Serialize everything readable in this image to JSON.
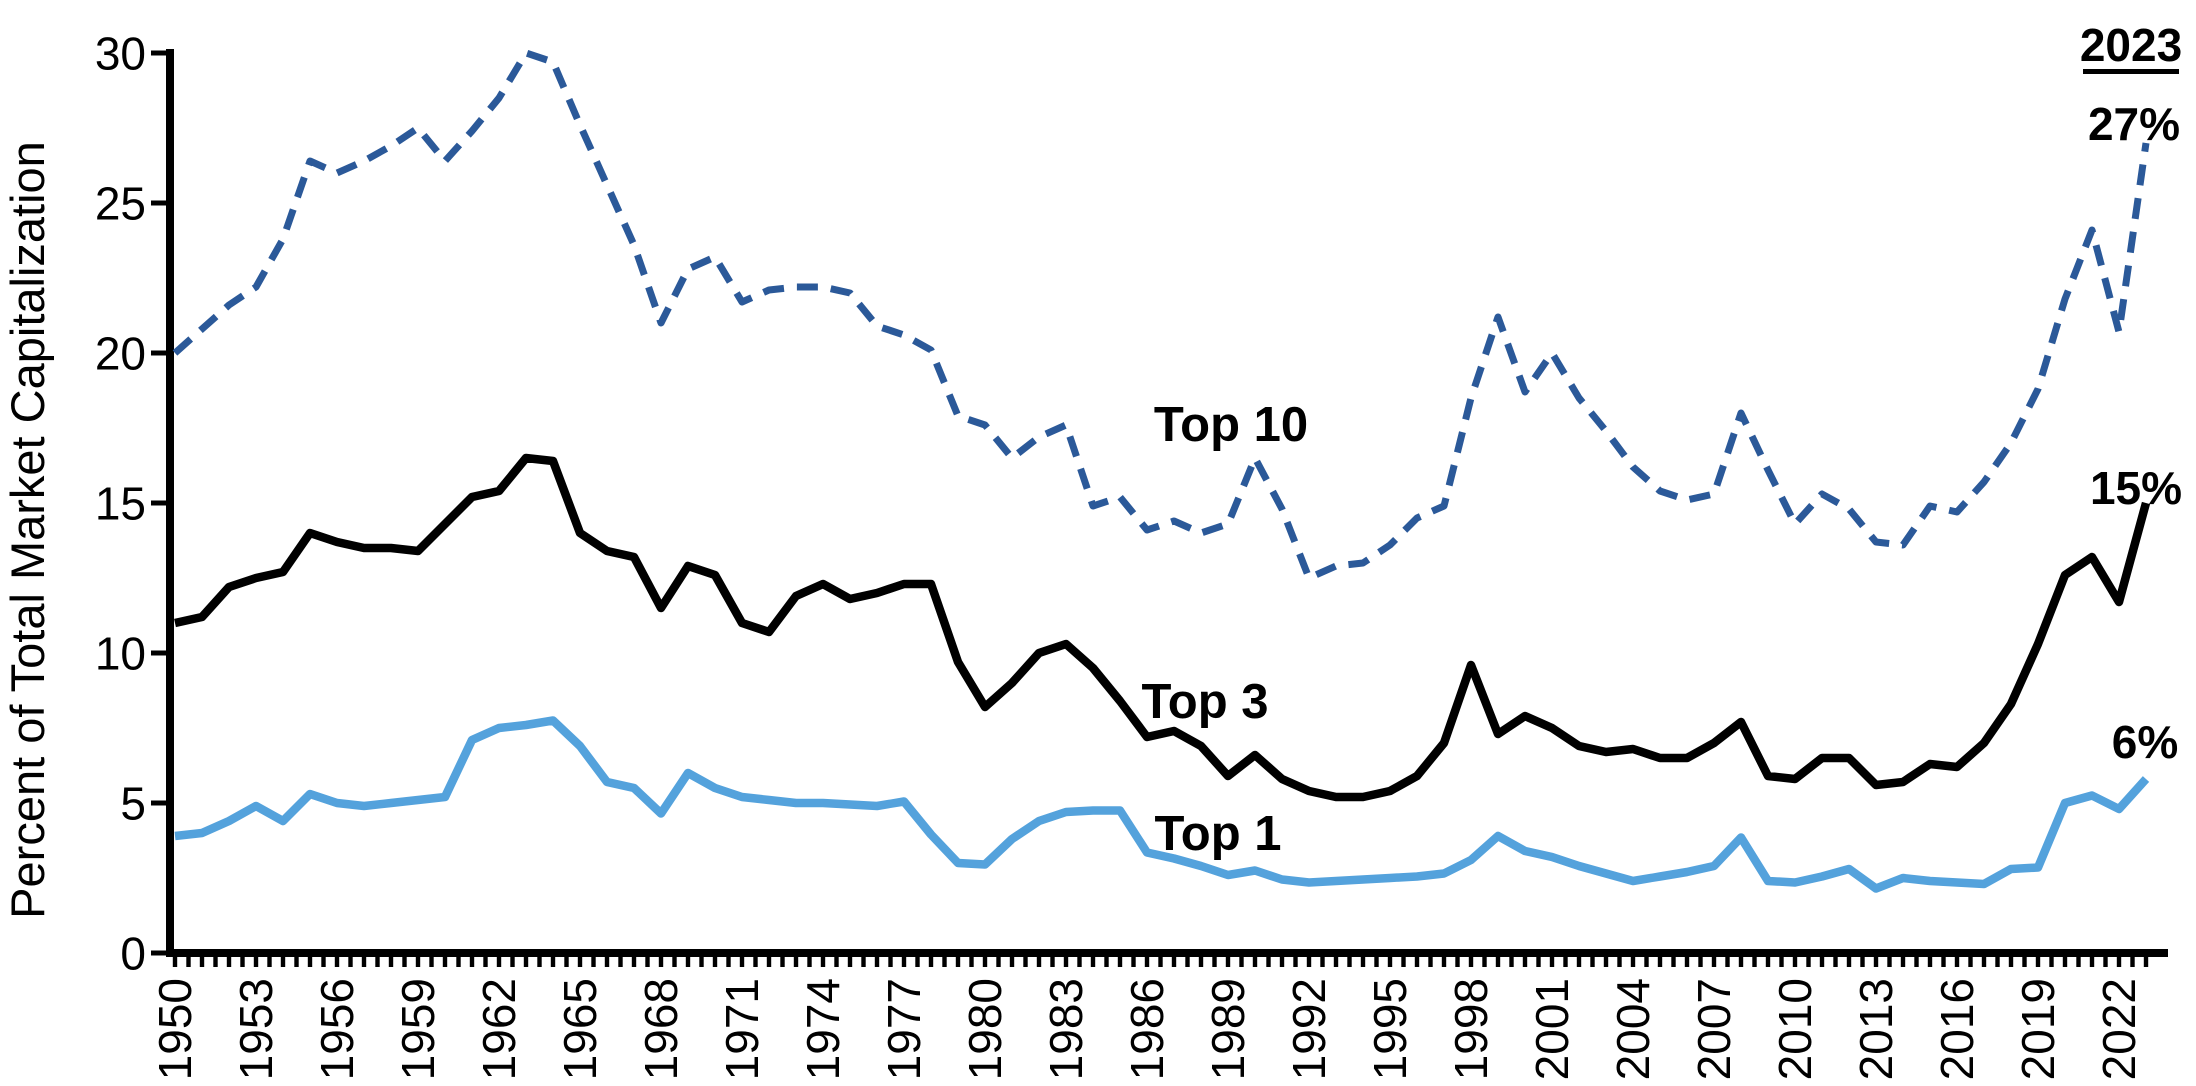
{
  "annotations": {
    "year": "2023",
    "top10_end": "27%",
    "top3_end": "15%",
    "top1_end": "6%"
  },
  "series_labels": {
    "top10": "Top 10",
    "top3": "Top 3",
    "top1": "Top 1"
  },
  "colors": {
    "top10": "#2B5999",
    "top3": "#000000",
    "top1": "#54A2DC",
    "axis": "#000000"
  },
  "chart_data": {
    "type": "line",
    "title": "",
    "xlabel": "",
    "ylabel": "Percent of Total Market Capitalization",
    "ylim": [
      0,
      30
    ],
    "yticks": [
      0,
      5,
      10,
      15,
      20,
      25,
      30
    ],
    "grid": false,
    "legend_position": "inline-labels",
    "xtick_labels": [
      "1950",
      "1953",
      "1956",
      "1959",
      "1962",
      "1965",
      "1968",
      "1971",
      "1974",
      "1977",
      "1980",
      "1983",
      "1986",
      "1989",
      "1992",
      "1995",
      "1998",
      "2001",
      "2004",
      "2007",
      "2010",
      "2013",
      "2016",
      "2019",
      "2022"
    ],
    "minor_xtick_interval_years": 0.5,
    "x": [
      1950,
      1951,
      1952,
      1953,
      1954,
      1955,
      1956,
      1957,
      1958,
      1959,
      1960,
      1961,
      1962,
      1963,
      1964,
      1965,
      1966,
      1967,
      1968,
      1969,
      1970,
      1971,
      1972,
      1973,
      1974,
      1975,
      1976,
      1977,
      1978,
      1979,
      1980,
      1981,
      1982,
      1983,
      1984,
      1985,
      1986,
      1987,
      1988,
      1989,
      1990,
      1991,
      1992,
      1993,
      1994,
      1995,
      1996,
      1997,
      1998,
      1999,
      2000,
      2001,
      2002,
      2003,
      2004,
      2005,
      2006,
      2007,
      2008,
      2009,
      2010,
      2011,
      2012,
      2013,
      2014,
      2015,
      2016,
      2017,
      2018,
      2019,
      2020,
      2021,
      2022,
      2023
    ],
    "series": [
      {
        "name": "Top 10",
        "style": "dashed",
        "color": "#2B5999",
        "values": [
          20.0,
          20.8,
          21.6,
          22.2,
          23.8,
          26.4,
          26.0,
          26.4,
          26.9,
          27.5,
          26.4,
          27.4,
          28.5,
          30.0,
          29.7,
          27.6,
          25.6,
          23.6,
          21.0,
          22.8,
          23.2,
          21.7,
          22.1,
          22.2,
          22.2,
          22.0,
          20.9,
          20.6,
          20.1,
          17.9,
          17.6,
          16.5,
          17.2,
          17.6,
          14.9,
          15.2,
          14.1,
          14.4,
          14.0,
          14.3,
          16.5,
          14.8,
          12.5,
          12.9,
          13.0,
          13.6,
          14.5,
          14.9,
          18.5,
          21.2,
          18.7,
          20.0,
          18.5,
          17.4,
          16.2,
          15.4,
          15.1,
          15.3,
          18.0,
          16.1,
          14.3,
          15.3,
          14.8,
          13.7,
          13.6,
          14.9,
          14.7,
          15.7,
          17.0,
          18.8,
          21.8,
          24.1,
          20.7,
          27.0
        ]
      },
      {
        "name": "Top 3",
        "style": "solid",
        "color": "#000000",
        "values": [
          11.0,
          11.2,
          12.2,
          12.5,
          12.7,
          14.0,
          13.7,
          13.5,
          13.5,
          13.4,
          14.3,
          15.2,
          15.4,
          16.5,
          16.4,
          14.0,
          13.4,
          13.2,
          11.5,
          12.9,
          12.6,
          11.0,
          10.7,
          11.9,
          12.3,
          11.8,
          12.0,
          12.3,
          12.3,
          9.7,
          8.2,
          9.0,
          10.0,
          10.3,
          9.5,
          8.4,
          7.2,
          7.4,
          6.9,
          5.9,
          6.6,
          5.8,
          5.4,
          5.2,
          5.2,
          5.4,
          5.9,
          7.0,
          9.6,
          7.3,
          7.9,
          7.5,
          6.9,
          6.7,
          6.8,
          6.5,
          6.5,
          7.0,
          7.7,
          5.9,
          5.8,
          6.5,
          6.5,
          5.6,
          5.7,
          6.3,
          6.2,
          7.0,
          8.3,
          10.3,
          12.6,
          13.2,
          11.7,
          15.0
        ]
      },
      {
        "name": "Top 1",
        "style": "solid",
        "color": "#54A2DC",
        "values": [
          3.9,
          4.0,
          4.4,
          4.9,
          4.4,
          5.3,
          5.0,
          4.9,
          5.0,
          5.1,
          5.2,
          7.1,
          7.5,
          7.6,
          7.75,
          6.9,
          5.7,
          5.5,
          4.65,
          6.0,
          5.5,
          5.2,
          5.1,
          5.0,
          5.0,
          4.95,
          4.9,
          5.05,
          3.95,
          3.0,
          2.95,
          3.8,
          4.4,
          4.7,
          4.75,
          4.75,
          3.35,
          3.15,
          2.9,
          2.6,
          2.75,
          2.45,
          2.35,
          2.4,
          2.45,
          2.5,
          2.55,
          2.65,
          3.1,
          3.9,
          3.4,
          3.2,
          2.9,
          2.65,
          2.4,
          2.55,
          2.7,
          2.9,
          3.85,
          2.4,
          2.35,
          2.55,
          2.8,
          2.15,
          2.5,
          2.4,
          2.35,
          2.3,
          2.8,
          2.85,
          5.0,
          5.25,
          4.8,
          5.8
        ]
      }
    ]
  }
}
